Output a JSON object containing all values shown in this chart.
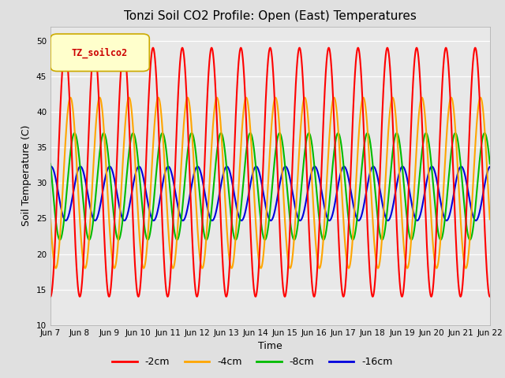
{
  "title": "Tonzi Soil CO2 Profile: Open (East) Temperatures",
  "xlabel": "Time",
  "ylabel": "Soil Temperature (C)",
  "ylim": [
    10,
    52
  ],
  "bg_color": "#e0e0e0",
  "plot_bg_color": "#e8e8e8",
  "grid_color": "white",
  "series": {
    "-2cm": {
      "color": "#ff0000",
      "amplitude": 17.5,
      "mean": 31.5,
      "period": 1.0,
      "phase": 0.0
    },
    "-4cm": {
      "color": "#ffa500",
      "amplitude": 12.0,
      "mean": 30.0,
      "period": 1.0,
      "phase": 0.18
    },
    "-8cm": {
      "color": "#00bb00",
      "amplitude": 7.5,
      "mean": 29.5,
      "period": 1.0,
      "phase": 0.32
    },
    "-16cm": {
      "color": "#0000dd",
      "amplitude": 3.8,
      "mean": 28.5,
      "period": 1.0,
      "phase": 0.52
    }
  },
  "x_tick_labels": [
    "Jun 7",
    "Jun 8",
    "Jun 9",
    "Jun 10",
    "Jun 11",
    "Jun 12",
    "Jun 13",
    "Jun 14",
    "Jun 15",
    "Jun 16",
    "Jun 17",
    "Jun 18",
    "Jun 19",
    "Jun 20",
    "Jun 21",
    "Jun 22"
  ],
  "y_ticks": [
    10,
    15,
    20,
    25,
    30,
    35,
    40,
    45,
    50
  ],
  "legend_label": "TZ_soilco2",
  "legend_bg": "#ffffcc",
  "legend_border": "#ccaa00",
  "line_width": 1.5,
  "title_fontsize": 11,
  "axis_fontsize": 9,
  "tick_fontsize": 7.5
}
